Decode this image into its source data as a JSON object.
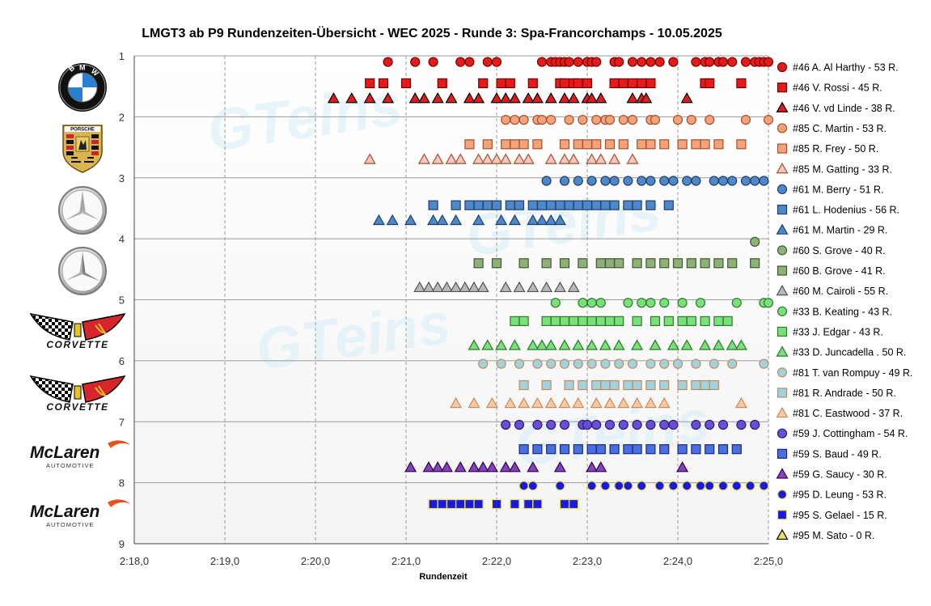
{
  "chart_data": {
    "type": "scatter",
    "title": "LMGT3 ab P9 Rundenzeiten-Übersicht - WEC 2025 - Runde 3: Spa-Francorchamps - 10.05.2025",
    "xlabel": "Rundenzeit",
    "ylabel": "",
    "x_range_seconds": [
      138,
      145
    ],
    "x_ticks": [
      "2:18,0",
      "2:19,0",
      "2:20,0",
      "2:21,0",
      "2:22,0",
      "2:23,0",
      "2:24,0",
      "2:25,0"
    ],
    "y_range": [
      1,
      9
    ],
    "y_ticks": [
      "1",
      "2",
      "3",
      "4",
      "5",
      "6",
      "7",
      "8",
      "9"
    ],
    "y_inverted": true,
    "grid": "vertical-dashed, horizontal-solid",
    "legend_position": "right",
    "series": [
      {
        "name": "#46 A. Al Harthy - 53 R.",
        "marker": "circle",
        "color": "#e31b1b",
        "edge": "#7a0000",
        "y": 1.1,
        "x": [
          140.8,
          141.1,
          141.3,
          141.6,
          141.7,
          141.9,
          142.0,
          142.5,
          142.6,
          142.65,
          142.7,
          142.75,
          142.8,
          142.9,
          143.0,
          143.05,
          143.1,
          143.3,
          143.35,
          143.5,
          143.6,
          143.7,
          143.8,
          143.95,
          144.2,
          144.3,
          144.35,
          144.45,
          144.5,
          144.6,
          144.75,
          144.85,
          144.9,
          144.95,
          145.0
        ]
      },
      {
        "name": "#46 V. Rossi - 45 R.",
        "marker": "square",
        "color": "#e31b1b",
        "edge": "#7a0000",
        "y": 1.45,
        "x": [
          140.6,
          140.75,
          141.0,
          141.4,
          141.85,
          142.05,
          142.15,
          142.4,
          142.7,
          142.75,
          142.85,
          142.9,
          143.0,
          143.3,
          143.4,
          143.5,
          143.6,
          143.7,
          144.3,
          144.35,
          144.7
        ]
      },
      {
        "name": "#46 V. vd Linde - 38 R.",
        "marker": "triangle",
        "color": "#e31b1b",
        "edge": "#000000",
        "y": 1.7,
        "x": [
          140.2,
          140.4,
          140.6,
          140.8,
          141.1,
          141.2,
          141.35,
          141.5,
          141.7,
          141.8,
          142.0,
          142.1,
          142.2,
          142.35,
          142.45,
          142.6,
          142.75,
          142.85,
          143.0,
          143.05,
          143.15,
          143.5,
          143.6,
          143.65,
          144.1
        ]
      },
      {
        "name": "#85 C. Martin - 53 R.",
        "marker": "circle",
        "color": "#f5a27a",
        "edge": "#a0522d",
        "y": 2.05,
        "x": [
          142.1,
          142.2,
          142.3,
          142.45,
          142.5,
          142.6,
          142.8,
          142.95,
          143.1,
          143.2,
          143.25,
          143.4,
          143.5,
          143.7,
          143.75,
          144.0,
          144.15,
          144.35,
          144.75,
          145.0
        ]
      },
      {
        "name": "#85 R. Frey - 50 R.",
        "marker": "square",
        "color": "#f5a27a",
        "edge": "#a0522d",
        "y": 2.45,
        "x": [
          141.7,
          141.9,
          142.1,
          142.2,
          142.3,
          142.45,
          142.75,
          142.9,
          143.0,
          143.1,
          143.25,
          143.4,
          143.6,
          143.7,
          143.85,
          144.05,
          144.2,
          144.3,
          144.45,
          144.7
        ]
      },
      {
        "name": "#85 M. Gatting - 33 R.",
        "marker": "triangle",
        "color": "#f7c6c0",
        "edge": "#a0522d",
        "y": 2.7,
        "x": [
          140.6,
          141.2,
          141.35,
          141.5,
          141.6,
          141.8,
          141.9,
          142.0,
          142.1,
          142.25,
          142.35,
          142.6,
          142.75,
          142.85,
          143.05,
          143.15,
          143.3,
          143.5
        ]
      },
      {
        "name": "#61 M. Berry - 51 R.",
        "marker": "circle",
        "color": "#4e88c9",
        "edge": "#1f3f6b",
        "y": 3.05,
        "x": [
          142.55,
          142.75,
          142.9,
          143.05,
          143.2,
          143.3,
          143.45,
          143.6,
          143.7,
          143.85,
          143.95,
          144.1,
          144.2,
          144.4,
          144.5,
          144.6,
          144.75,
          144.85,
          144.95
        ]
      },
      {
        "name": "#61 L. Hodenius - 56 R.",
        "marker": "square",
        "color": "#4e88c9",
        "edge": "#1f3f6b",
        "y": 3.45,
        "x": [
          141.3,
          141.55,
          141.7,
          141.8,
          141.9,
          142.0,
          142.15,
          142.25,
          142.4,
          142.5,
          142.6,
          142.7,
          142.8,
          142.9,
          143.0,
          143.1,
          143.2,
          143.3,
          143.45,
          143.55,
          143.7,
          143.9
        ]
      },
      {
        "name": "#61 M. Martin - 29 R.",
        "marker": "triangle",
        "color": "#4e88c9",
        "edge": "#1f3f6b",
        "y": 3.7,
        "x": [
          140.7,
          140.85,
          141.05,
          141.3,
          141.4,
          141.55,
          141.8,
          142.05,
          142.2,
          142.4,
          142.5,
          142.6,
          142.7
        ]
      },
      {
        "name": "#60 S. Grove - 40 R.",
        "marker": "circle",
        "color": "#8fb07a",
        "edge": "#3d5a2a",
        "y": 4.05,
        "x": [
          144.85
        ]
      },
      {
        "name": "#60 B. Grove - 41 R.",
        "marker": "square",
        "color": "#8fb07a",
        "edge": "#3d5a2a",
        "y": 4.4,
        "x": [
          141.8,
          142.0,
          142.3,
          142.55,
          142.75,
          142.95,
          143.15,
          143.25,
          143.35,
          143.55,
          143.7,
          143.85,
          144.0,
          144.15,
          144.3,
          144.45,
          144.6,
          144.85
        ]
      },
      {
        "name": "#60 M. Cairoli - 55 R.",
        "marker": "triangle",
        "color": "#b8b8b8",
        "edge": "#555555",
        "y": 4.8,
        "x": [
          141.15,
          141.25,
          141.35,
          141.45,
          141.55,
          141.65,
          141.75,
          141.85,
          142.1,
          142.25,
          142.4,
          142.55,
          142.7,
          142.85
        ]
      },
      {
        "name": "#33 B. Keating - 43 R.",
        "marker": "circle",
        "color": "#7ae07a",
        "edge": "#2d7a2d",
        "y": 5.05,
        "x": [
          142.65,
          142.95,
          143.05,
          143.15,
          143.45,
          143.6,
          143.7,
          143.85,
          144.05,
          144.25,
          144.65,
          144.95,
          145.0
        ]
      },
      {
        "name": "#33 J. Edgar - 43 R.",
        "marker": "square",
        "color": "#7ae07a",
        "edge": "#2d7a2d",
        "y": 5.35,
        "x": [
          142.2,
          142.3,
          142.55,
          142.65,
          142.75,
          142.85,
          142.95,
          143.05,
          143.15,
          143.25,
          143.35,
          143.55,
          143.75,
          143.9,
          144.05,
          144.15,
          144.3,
          144.45,
          144.55
        ]
      },
      {
        "name": "#33 D. Juncadella . 50 R.",
        "marker": "triangle",
        "color": "#7ae07a",
        "edge": "#2d7a2d",
        "y": 5.75,
        "x": [
          141.75,
          141.9,
          142.05,
          142.2,
          142.4,
          142.5,
          142.6,
          142.75,
          142.9,
          143.05,
          143.2,
          143.35,
          143.55,
          143.75,
          143.95,
          144.1,
          144.3,
          144.45,
          144.6,
          144.7
        ]
      },
      {
        "name": "#81 T. van Rompuy - 49 R.",
        "marker": "circle",
        "color": "#9fd3df",
        "edge": "#c8895a",
        "y": 6.05,
        "x": [
          141.85,
          142.05,
          142.25,
          142.45,
          142.6,
          142.75,
          142.9,
          143.05,
          143.2,
          143.35,
          143.5,
          143.7,
          143.85,
          144.0,
          144.2,
          144.4,
          144.6,
          144.95
        ]
      },
      {
        "name": "#81 R. Andrade - 50 R.",
        "marker": "square",
        "color": "#9fd3df",
        "edge": "#c8895a",
        "y": 6.4,
        "x": [
          142.3,
          142.55,
          142.8,
          142.95,
          143.1,
          143.2,
          143.3,
          143.45,
          143.55,
          143.7,
          143.85,
          144.05,
          144.2,
          144.3,
          144.4
        ]
      },
      {
        "name": "#81 C. Eastwood - 37 R.",
        "marker": "triangle",
        "color": "#f5c9a3",
        "edge": "#c8895a",
        "y": 6.7,
        "x": [
          141.55,
          141.75,
          141.95,
          142.15,
          142.3,
          142.45,
          142.6,
          142.75,
          142.9,
          143.1,
          143.25,
          143.4,
          143.55,
          143.7,
          143.85,
          144.7
        ]
      },
      {
        "name": "#59 J. Cottingham - 54 R.",
        "marker": "circle",
        "color": "#6a4fd6",
        "edge": "#2a1a7a",
        "y": 7.05,
        "x": [
          142.1,
          142.25,
          142.45,
          142.6,
          142.75,
          142.95,
          143.0,
          143.1,
          143.25,
          143.4,
          143.55,
          143.7,
          143.85,
          143.95,
          144.2,
          144.35,
          144.5,
          144.7,
          144.85
        ]
      },
      {
        "name": "#59 S. Baud - 49 R.",
        "marker": "square",
        "color": "#4a6fe0",
        "edge": "#1a2a7a",
        "y": 7.45,
        "x": [
          142.3,
          142.45,
          142.6,
          142.75,
          142.9,
          143.05,
          143.15,
          143.3,
          143.45,
          143.55,
          143.7,
          143.85,
          144.05,
          144.2,
          144.35,
          144.5,
          144.65
        ]
      },
      {
        "name": "#59 G. Saucy - 30 R.",
        "marker": "triangle",
        "color": "#8a3fbf",
        "edge": "#2a0a4a",
        "y": 7.75,
        "x": [
          141.05,
          141.25,
          141.35,
          141.45,
          141.6,
          141.75,
          141.85,
          141.95,
          142.1,
          142.2,
          142.4,
          142.7,
          143.05,
          143.15,
          144.05
        ]
      },
      {
        "name": "#95 D. Leung - 53 R.",
        "marker": "circle",
        "color": "#1a1ad9",
        "edge": "#e8e060",
        "y": 8.05,
        "x": [
          142.3,
          142.4,
          142.7,
          143.05,
          143.2,
          143.35,
          143.45,
          143.6,
          143.8,
          143.95,
          144.1,
          144.25,
          144.35,
          144.5,
          144.65,
          144.8,
          144.95
        ]
      },
      {
        "name": "#95 S. Gelael - 15 R.",
        "marker": "square",
        "color": "#1a1ad9",
        "edge": "#e8e060",
        "y": 8.35,
        "x": [
          141.3,
          141.4,
          141.5,
          141.6,
          141.7,
          141.8,
          142.0,
          142.2,
          142.35,
          142.45,
          142.75,
          142.85
        ]
      },
      {
        "name": "#95 M. Sato - 0 R.",
        "marker": "triangle",
        "color": "#e8e060",
        "edge": "#000000",
        "y": 8.4,
        "x": []
      }
    ]
  },
  "logos": [
    {
      "name": "bmw-logo",
      "text": "BMW"
    },
    {
      "name": "porsche-logo",
      "text": "PORSCHE"
    },
    {
      "name": "mercedes-logo-1",
      "text": ""
    },
    {
      "name": "mercedes-logo-2",
      "text": ""
    },
    {
      "name": "corvette-logo-1",
      "text": "CORVETTE"
    },
    {
      "name": "corvette-logo-2",
      "text": "CORVETTE"
    },
    {
      "name": "mclaren-logo-1",
      "text": "McLaren",
      "sub": "AUTOMOTIVE"
    },
    {
      "name": "mclaren-logo-2",
      "text": "McLaren",
      "sub": "AUTOMOTIVE"
    }
  ],
  "watermark": "GTeins"
}
